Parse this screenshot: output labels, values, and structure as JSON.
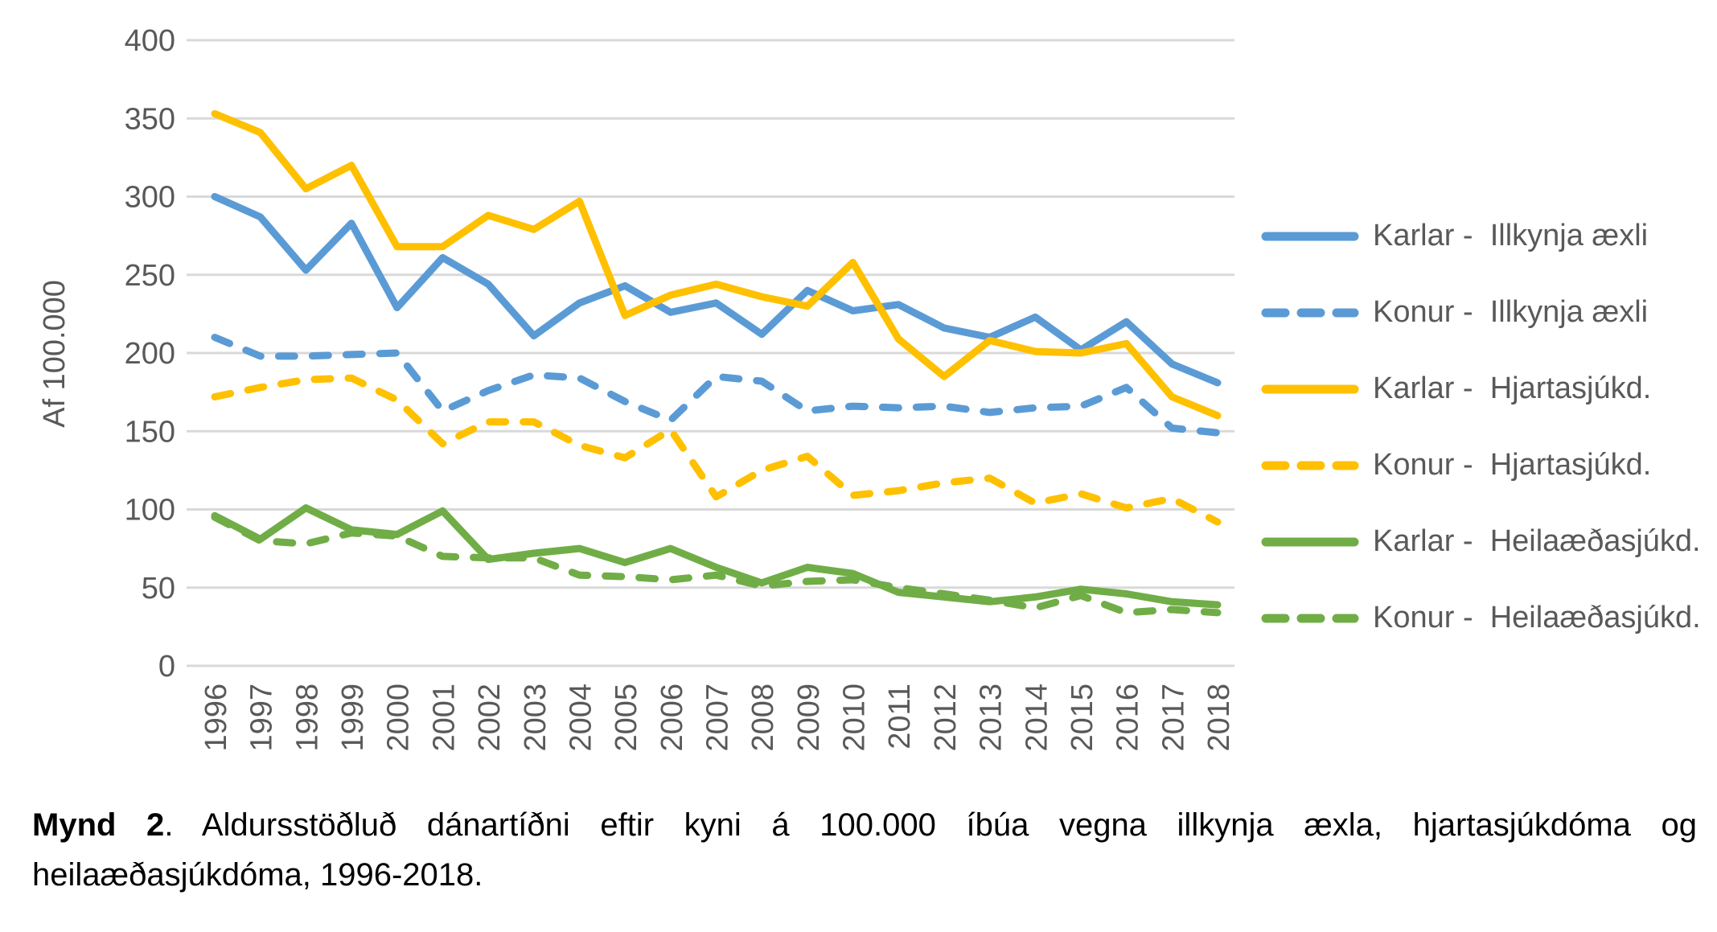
{
  "caption": {
    "bold": "Mynd 2",
    "rest": ". Aldursstöðluð dánartíðni eftir kyni á 100.000 íbúa vegna illkynja æxla, hjartasjúkdóma og heilaæðasjúkdóma, 1996-2018."
  },
  "chart_data": {
    "type": "line",
    "title": "",
    "xlabel": "",
    "ylabel": "Af 100.000",
    "ylim": [
      0,
      400
    ],
    "yticks": [
      400,
      350,
      300,
      250,
      200,
      150,
      100,
      50,
      0
    ],
    "grid": true,
    "legend_position": "right",
    "axis_text_color": "#595959",
    "gridline_color": "#D9D9D9",
    "x": [
      "1996",
      "1997",
      "1998",
      "1999",
      "2000",
      "2001",
      "2002",
      "2003",
      "2004",
      "2005",
      "2006",
      "2007",
      "2008",
      "2009",
      "2010",
      "2011",
      "2012",
      "2013",
      "2014",
      "2015",
      "2016",
      "2017",
      "2018"
    ],
    "series": [
      {
        "name": "Karlar -  Illkynja æxli",
        "color": "#5B9BD5",
        "dash": "solid",
        "values": [
          300,
          287,
          253,
          283,
          229,
          261,
          244,
          211,
          232,
          243,
          226,
          232,
          212,
          240,
          227,
          231,
          216,
          210,
          223,
          202,
          220,
          193,
          181
        ]
      },
      {
        "name": "Konur -  Illkynja æxli",
        "color": "#5B9BD5",
        "dash": "dashed",
        "values": [
          210,
          198,
          198,
          199,
          200,
          163,
          176,
          186,
          184,
          169,
          157,
          185,
          182,
          163,
          166,
          165,
          166,
          162,
          165,
          166,
          178,
          152,
          149
        ]
      },
      {
        "name": "Karlar -  Hjartasjúkd.",
        "color": "#FFC000",
        "dash": "solid",
        "values": [
          353,
          341,
          305,
          320,
          268,
          268,
          288,
          279,
          297,
          224,
          237,
          244,
          236,
          230,
          258,
          209,
          185,
          208,
          201,
          200,
          206,
          172,
          160
        ]
      },
      {
        "name": "Konur -  Hjartasjúkd.",
        "color": "#FFC000",
        "dash": "dashed",
        "values": [
          172,
          178,
          183,
          184,
          170,
          142,
          156,
          156,
          141,
          133,
          151,
          108,
          125,
          134,
          109,
          112,
          117,
          120,
          104,
          110,
          101,
          107,
          92
        ]
      },
      {
        "name": "Karlar -  Heilaæðasjúkd.",
        "color": "#70AD47",
        "dash": "solid",
        "values": [
          96,
          81,
          101,
          87,
          84,
          99,
          68,
          72,
          75,
          66,
          75,
          63,
          53,
          63,
          59,
          47,
          44,
          41,
          44,
          49,
          46,
          41,
          39
        ]
      },
      {
        "name": "Konur -  Heilaæðasjúkd.",
        "color": "#70AD47",
        "dash": "dashed",
        "values": [
          95,
          80,
          78,
          85,
          83,
          70,
          69,
          69,
          58,
          57,
          55,
          58,
          51,
          54,
          55,
          50,
          46,
          42,
          37,
          45,
          34,
          36,
          34
        ]
      }
    ]
  }
}
